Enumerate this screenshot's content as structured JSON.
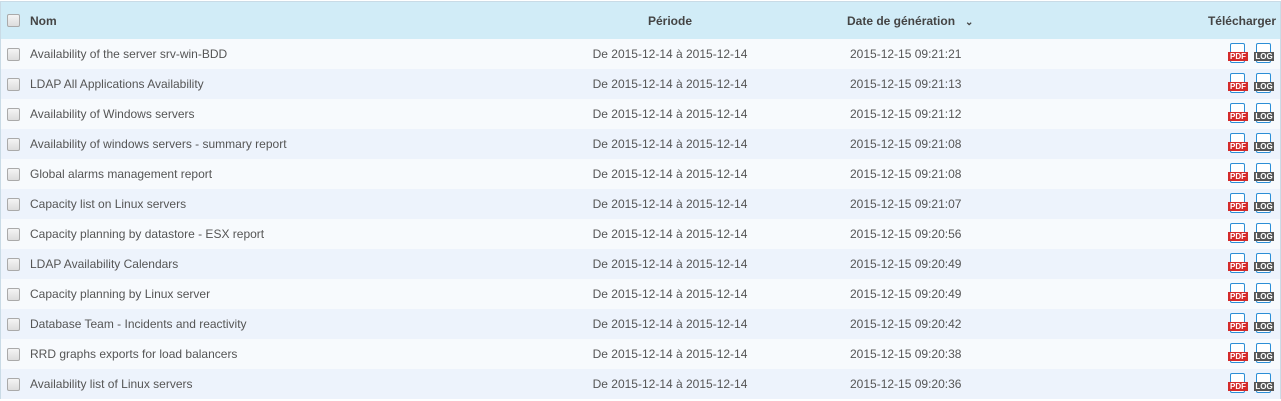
{
  "header": {
    "name": "Nom",
    "period": "Période",
    "date": "Date de génération",
    "download": "Télécharger",
    "sort_icon": "chevron-down-icon"
  },
  "icons": {
    "pdf": "PDF",
    "log": "LOG"
  },
  "rows": [
    {
      "name": "Availability of the server srv-win-BDD",
      "period": "De 2015-12-14 à 2015-12-14",
      "date": "2015-12-15 09:21:21"
    },
    {
      "name": "LDAP All Applications Availability",
      "period": "De 2015-12-14 à 2015-12-14",
      "date": "2015-12-15 09:21:13"
    },
    {
      "name": "Availability of Windows servers",
      "period": "De 2015-12-14 à 2015-12-14",
      "date": "2015-12-15 09:21:12"
    },
    {
      "name": "Availability of windows servers - summary report",
      "period": "De 2015-12-14 à 2015-12-14",
      "date": "2015-12-15 09:21:08"
    },
    {
      "name": "Global alarms management report",
      "period": "De 2015-12-14 à 2015-12-14",
      "date": "2015-12-15 09:21:08"
    },
    {
      "name": "Capacity list on Linux servers",
      "period": "De 2015-12-14 à 2015-12-14",
      "date": "2015-12-15 09:21:07"
    },
    {
      "name": "Capacity planning by datastore - ESX report",
      "period": "De 2015-12-14 à 2015-12-14",
      "date": "2015-12-15 09:20:56"
    },
    {
      "name": "LDAP Availability Calendars",
      "period": "De 2015-12-14 à 2015-12-14",
      "date": "2015-12-15 09:20:49"
    },
    {
      "name": "Capacity planning by Linux server",
      "period": "De 2015-12-14 à 2015-12-14",
      "date": "2015-12-15 09:20:49"
    },
    {
      "name": "Database Team - Incidents and reactivity",
      "period": "De 2015-12-14 à 2015-12-14",
      "date": "2015-12-15 09:20:42"
    },
    {
      "name": "RRD graphs exports for load balancers",
      "period": "De 2015-12-14 à 2015-12-14",
      "date": "2015-12-15 09:20:38"
    },
    {
      "name": "Availability list of Linux servers",
      "period": "De 2015-12-14 à 2015-12-14",
      "date": "2015-12-15 09:20:36"
    }
  ]
}
